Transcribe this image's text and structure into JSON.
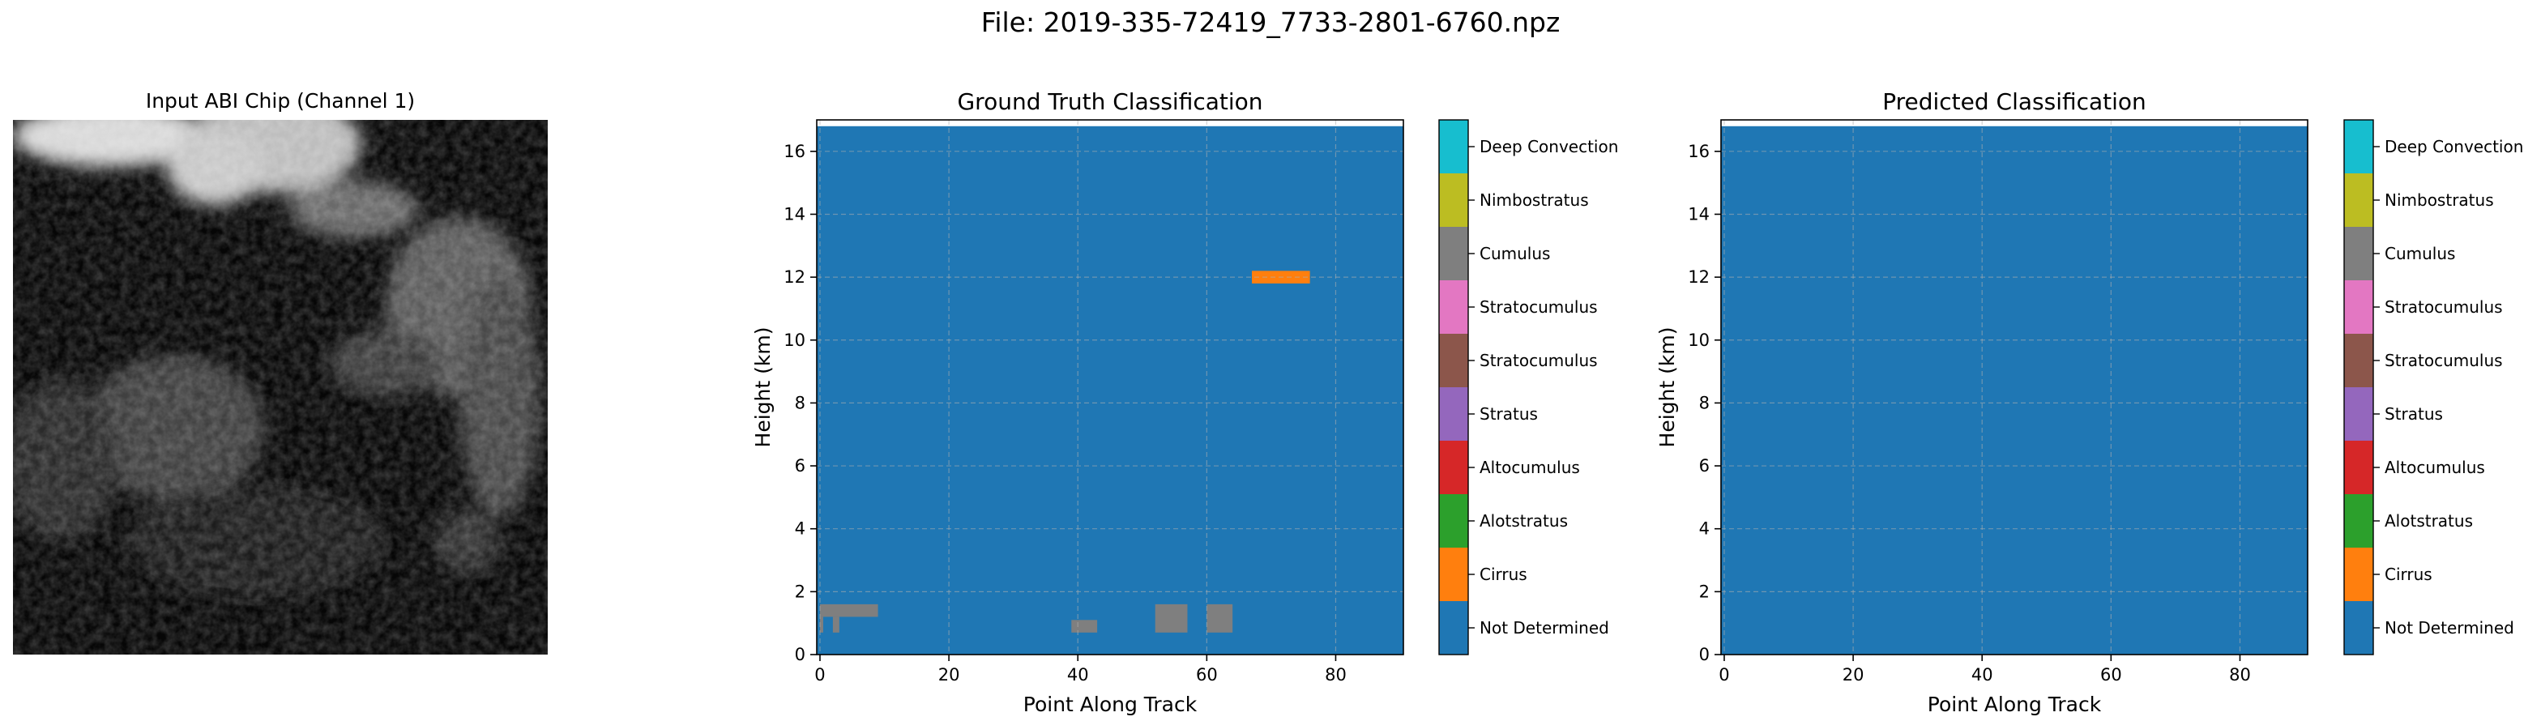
{
  "figure": {
    "title": "File: 2019-335-72419_7733-2801-6760.npz"
  },
  "image_panel": {
    "title": "Input ABI Chip (Channel 1)"
  },
  "chart_data": [
    {
      "type": "heatmap",
      "title": "Ground Truth Classification",
      "xlabel": "Point Along Track",
      "ylabel": "Height (km)",
      "xlim": [
        -0.5,
        90.5
      ],
      "ylim": [
        0,
        17
      ],
      "xticks": [
        0,
        20,
        40,
        60,
        80
      ],
      "yticks": [
        0,
        2,
        4,
        6,
        8,
        10,
        12,
        14,
        16
      ],
      "grid": true,
      "data_top_km": 16.8,
      "background_class": "Not Determined",
      "regions": [
        {
          "class": "Cirrus",
          "x": [
            67,
            76
          ],
          "y": [
            11.8,
            12.2
          ]
        },
        {
          "class": "Cumulus",
          "x": [
            0,
            9
          ],
          "y": [
            1.2,
            1.6
          ]
        },
        {
          "class": "Cumulus",
          "x": [
            0,
            0.5
          ],
          "y": [
            0.7,
            1.2
          ]
        },
        {
          "class": "Cumulus",
          "x": [
            2,
            3
          ],
          "y": [
            0.7,
            1.2
          ]
        },
        {
          "class": "Cumulus",
          "x": [
            39,
            43
          ],
          "y": [
            0.7,
            1.1
          ]
        },
        {
          "class": "Cumulus",
          "x": [
            52,
            57
          ],
          "y": [
            0.7,
            1.6
          ]
        },
        {
          "class": "Cumulus",
          "x": [
            60,
            64
          ],
          "y": [
            0.7,
            1.6
          ]
        }
      ]
    },
    {
      "type": "heatmap",
      "title": "Predicted Classification",
      "xlabel": "Point Along Track",
      "ylabel": "Height (km)",
      "xlim": [
        -0.5,
        90.5
      ],
      "ylim": [
        0,
        17
      ],
      "xticks": [
        0,
        20,
        40,
        60,
        80
      ],
      "yticks": [
        0,
        2,
        4,
        6,
        8,
        10,
        12,
        14,
        16
      ],
      "grid": true,
      "data_top_km": 16.8,
      "background_class": "Not Determined",
      "regions": []
    }
  ],
  "colorbar": {
    "classes": [
      {
        "label": "Not Determined",
        "color": "#1f77b4"
      },
      {
        "label": "Cirrus",
        "color": "#ff7f0e"
      },
      {
        "label": "Alotstratus",
        "color": "#2ca02c"
      },
      {
        "label": "Altocumulus",
        "color": "#d62728"
      },
      {
        "label": "Stratus",
        "color": "#9467bd"
      },
      {
        "label": "Stratocumulus",
        "color": "#8c564b"
      },
      {
        "label": "Stratocumulus",
        "color": "#e377c2"
      },
      {
        "label": "Cumulus",
        "color": "#7f7f7f"
      },
      {
        "label": "Nimbostratus",
        "color": "#bcbd22"
      },
      {
        "label": "Deep Convection",
        "color": "#17becf"
      }
    ]
  }
}
